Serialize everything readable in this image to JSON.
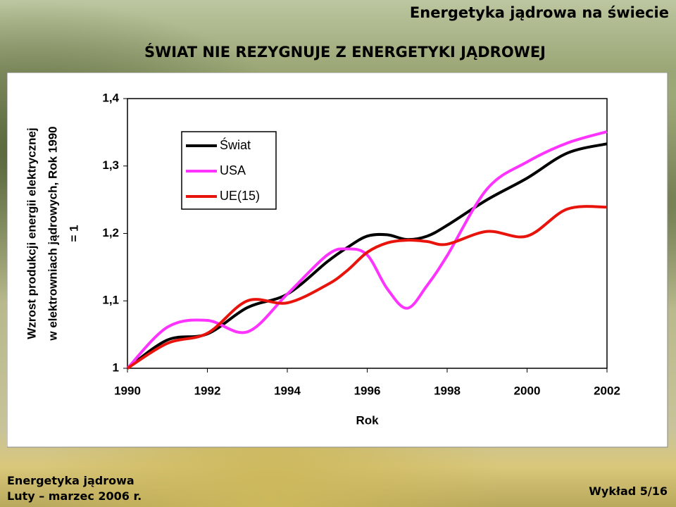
{
  "header": {
    "title": "Energetyka jądrowa na świecie",
    "subtitle": "ŚWIAT NIE REZYGNUJE Z ENERGETYKI JĄDROWEJ"
  },
  "footer": {
    "left": [
      "Energetyka jądrowa",
      "Luty – marzec 2006 r."
    ],
    "right": "Wykład 5/16"
  },
  "chart_data": {
    "type": "line",
    "y_label": [
      "Wzrost produkcji energii elektrycznej",
      "w elektrowniach jądrowych, Rok 1990",
      "= 1"
    ],
    "x_label": "Rok",
    "x": [
      1990,
      1991,
      1992,
      1993,
      1994,
      1995,
      1995.5,
      1996,
      1996.5,
      1997,
      1997.5,
      1998,
      1999,
      2000,
      2001,
      2002
    ],
    "series": [
      {
        "name": "Świat",
        "color": "#000000",
        "values": [
          1.0,
          1.042,
          1.051,
          1.09,
          1.11,
          1.158,
          1.179,
          1.196,
          1.198,
          1.191,
          1.196,
          1.212,
          1.25,
          1.282,
          1.319,
          1.333
        ]
      },
      {
        "name": "USA",
        "color": "#ff33ff",
        "values": [
          1.0,
          1.061,
          1.071,
          1.054,
          1.11,
          1.168,
          1.177,
          1.168,
          1.118,
          1.089,
          1.123,
          1.167,
          1.266,
          1.306,
          1.334,
          1.351
        ]
      },
      {
        "name": "UE(15)",
        "color": "#e8140c",
        "values": [
          1.0,
          1.037,
          1.052,
          1.1,
          1.097,
          1.124,
          1.145,
          1.172,
          1.186,
          1.19,
          1.188,
          1.184,
          1.203,
          1.196,
          1.236,
          1.239
        ]
      }
    ],
    "xlim": [
      1990,
      2002
    ],
    "xticks": [
      1990,
      1992,
      1994,
      1996,
      1998,
      2000,
      2002
    ],
    "ylim": [
      1,
      1.4
    ],
    "yticks": [
      1,
      {
        "value": 1.1,
        "label": "1,1"
      },
      {
        "value": 1.2,
        "label": "1,2"
      },
      {
        "value": 1.3,
        "label": "1,3"
      },
      {
        "value": 1.4,
        "label": "1,4"
      }
    ],
    "legend": "upper left",
    "grid": false
  }
}
